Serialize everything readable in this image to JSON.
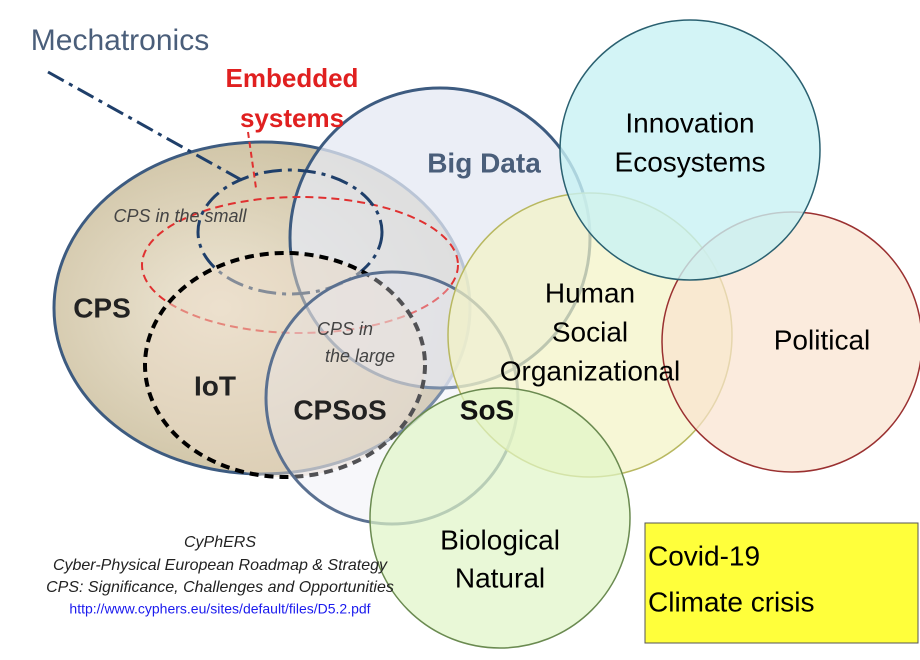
{
  "diagram": {
    "mechatronics": "Mechatronics",
    "embedded": [
      "Embedded",
      "systems"
    ],
    "big_data": "Big Data",
    "cps_small": "CPS in the small",
    "cps": "CPS",
    "cps_large": [
      "CPS in",
      "the large"
    ],
    "iot": "IoT",
    "cpsos": "CPSoS",
    "sos": "SoS",
    "innovation": [
      "Innovation",
      "Ecosystems"
    ],
    "human": [
      "Human",
      "Social",
      "Organizational"
    ],
    "political": "Political",
    "biological": [
      "Biological",
      "Natural"
    ],
    "crisis": [
      "Covid-19",
      "Climate crisis"
    ],
    "citation": [
      "CyPhERS",
      "Cyber-Physical European Roadmap & Strategy",
      "CPS: Significance, Challenges and Opportunities",
      "http://www.cyphers.eu/sites/default/files/D5.2.pdf"
    ]
  }
}
